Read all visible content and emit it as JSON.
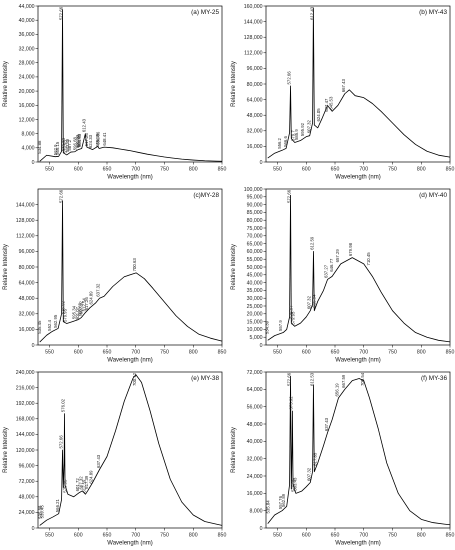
{
  "chart_data": [
    {
      "type": "line",
      "title": "(a) MY-25",
      "xlabel": "Wavelength (nm)",
      "ylabel": "Relative Intensity",
      "xlim": [
        530,
        850
      ],
      "ylim": [
        0,
        44000
      ],
      "xticks": [
        "550",
        "600",
        "650",
        "700",
        "750",
        "800",
        "850"
      ],
      "yticks": [
        "0",
        "4,000",
        "8,000",
        "12,000",
        "16,000",
        "20,000",
        "24,000",
        "28,000",
        "32,000",
        "36,000",
        "40,000",
        "44,000"
      ],
      "grid": false,
      "x": [
        533,
        545,
        560,
        566,
        571,
        572.66,
        574,
        580,
        587,
        594,
        600,
        606,
        612.4,
        615,
        625,
        634,
        636.4,
        645,
        660,
        675,
        690,
        705,
        720,
        735,
        750,
        765,
        780,
        800,
        820,
        840,
        850
      ],
      "y": [
        200,
        1900,
        1500,
        1600,
        3000,
        43000,
        2600,
        2000,
        2800,
        2900,
        3500,
        3800,
        8000,
        4200,
        3500,
        4400,
        3800,
        4200,
        4000,
        3600,
        3200,
        2700,
        2200,
        1800,
        1400,
        1100,
        800,
        550,
        350,
        250,
        200
      ],
      "peaks": [
        {
          "x": 534.88,
          "y": 1900,
          "label": "534.88"
        },
        {
          "x": 562.9,
          "y": 1500,
          "label": "562.9"
        },
        {
          "x": 566.15,
          "y": 1600,
          "label": "566.15"
        },
        {
          "x": 572.66,
          "y": 43000,
          "label": "572.66"
        },
        {
          "x": 576.63,
          "y": 2600,
          "label": "576.63"
        },
        {
          "x": 579.93,
          "y": 2000,
          "label": "579.93"
        },
        {
          "x": 583.89,
          "y": 2400,
          "label": "583.89"
        },
        {
          "x": 587.2,
          "y": 2800,
          "label": "587.2"
        },
        {
          "x": 596.68,
          "y": 2900,
          "label": "596.68"
        },
        {
          "x": 601.03,
          "y": 3500,
          "label": "601.03"
        },
        {
          "x": 603.06,
          "y": 3700,
          "label": "603.06"
        },
        {
          "x": 604.63,
          "y": 3800,
          "label": "604.63"
        },
        {
          "x": 612.43,
          "y": 8000,
          "label": "612.43"
        },
        {
          "x": 617.26,
          "y": 4000,
          "label": "617.26"
        },
        {
          "x": 624.33,
          "y": 3500,
          "label": "624.33"
        },
        {
          "x": 636.39,
          "y": 3800,
          "label": "636.39"
        },
        {
          "x": 636.86,
          "y": 4400,
          "label": "636.86"
        },
        {
          "x": 648.41,
          "y": 4200,
          "label": "648.41"
        }
      ]
    },
    {
      "type": "line",
      "title": "(b) MY-43",
      "xlabel": "Wavelength (nm)",
      "ylabel": "Relative Intensity",
      "xlim": [
        530,
        850
      ],
      "ylim": [
        0,
        160000
      ],
      "xticks": [
        "550",
        "600",
        "650",
        "700",
        "750",
        "800",
        "850"
      ],
      "yticks": [
        "0",
        "16,000",
        "32,000",
        "48,000",
        "64,000",
        "80,000",
        "96,000",
        "112,000",
        "128,000",
        "144,000",
        "160,000"
      ],
      "grid": false,
      "x": [
        533,
        545,
        558,
        565,
        571,
        572.66,
        574,
        580,
        590,
        600,
        606,
        611,
        612.43,
        614,
        620,
        627,
        637,
        645,
        655,
        667,
        675,
        685,
        700,
        715,
        730,
        750,
        770,
        790,
        810,
        830,
        850
      ],
      "y": [
        4000,
        9000,
        12000,
        14000,
        30000,
        78000,
        24000,
        20000,
        22000,
        26000,
        27000,
        40000,
        158000,
        38000,
        35000,
        44000,
        58000,
        52000,
        58000,
        70000,
        74000,
        68000,
        66000,
        60000,
        52000,
        40000,
        28000,
        18000,
        11000,
        7000,
        5000
      ],
      "peaks": [
        {
          "x": 556.2,
          "y": 12000,
          "label": "556.2"
        },
        {
          "x": 566.6,
          "y": 14000,
          "label": "566.6"
        },
        {
          "x": 572.66,
          "y": 78000,
          "label": "572.66"
        },
        {
          "x": 579.7,
          "y": 20000,
          "label": "579.7"
        },
        {
          "x": 585.9,
          "y": 21000,
          "label": "585.9"
        },
        {
          "x": 595.92,
          "y": 25000,
          "label": "595.92"
        },
        {
          "x": 607.32,
          "y": 28000,
          "label": "607.32"
        },
        {
          "x": 612.43,
          "y": 158000,
          "label": "612.43"
        },
        {
          "x": 624.05,
          "y": 40000,
          "label": "624.05"
        },
        {
          "x": 637.47,
          "y": 50000,
          "label": "637.47"
        },
        {
          "x": 645.53,
          "y": 52000,
          "label": "645.53"
        },
        {
          "x": 667.43,
          "y": 70000,
          "label": "667.43"
        }
      ]
    },
    {
      "type": "line",
      "title": "(c)MY-28",
      "xlabel": "Wavelength (nm)",
      "ylabel": "Relative Intensity",
      "xlim": [
        530,
        850
      ],
      "ylim": [
        0,
        160000
      ],
      "xticks": [
        "550",
        "600",
        "650",
        "700",
        "750",
        "800",
        "850"
      ],
      "yticks": [
        "0",
        "16,000",
        "32,000",
        "48,000",
        "64,000",
        "80,000",
        "96,000",
        "112,000",
        "128,000",
        "144,000"
      ],
      "grid": false,
      "x": [
        533,
        545,
        555,
        565,
        571,
        572.66,
        574,
        580,
        590,
        600,
        605,
        612,
        620,
        630,
        637,
        645,
        660,
        680,
        700.63,
        715,
        730,
        750,
        770,
        790,
        810,
        830,
        850
      ],
      "y": [
        3000,
        10000,
        14000,
        17000,
        32000,
        148000,
        24000,
        22000,
        24000,
        26000,
        28000,
        33000,
        38000,
        43000,
        48000,
        50000,
        60000,
        70000,
        74000,
        68000,
        58000,
        44000,
        30000,
        19000,
        11000,
        7000,
        4000
      ],
      "peaks": [
        {
          "x": 535.45,
          "y": 10000,
          "label": "535.45"
        },
        {
          "x": 552.4,
          "y": 13000,
          "label": "552.4"
        },
        {
          "x": 562.95,
          "y": 16000,
          "label": "562.95"
        },
        {
          "x": 572.66,
          "y": 148000,
          "label": "572.66"
        },
        {
          "x": 575.92,
          "y": 30000,
          "label": "575.92"
        },
        {
          "x": 579.95,
          "y": 22000,
          "label": "579.95"
        },
        {
          "x": 595.34,
          "y": 25000,
          "label": "595.34"
        },
        {
          "x": 601.07,
          "y": 24000,
          "label": "601.07"
        },
        {
          "x": 605.63,
          "y": 28000,
          "label": "605.63"
        },
        {
          "x": 607.32,
          "y": 30000,
          "label": "607.32"
        },
        {
          "x": 612.54,
          "y": 33000,
          "label": "612.54"
        },
        {
          "x": 617.26,
          "y": 34000,
          "label": "617.26"
        },
        {
          "x": 624.89,
          "y": 40000,
          "label": "624.89"
        },
        {
          "x": 637.32,
          "y": 48000,
          "label": "637.32"
        },
        {
          "x": 700.63,
          "y": 74000,
          "label": "700.63"
        }
      ]
    },
    {
      "type": "line",
      "title": "(d) MY-40",
      "xlabel": "Wavelength (nm)",
      "ylabel": "Relative Intensity",
      "xlim": [
        530,
        850
      ],
      "ylim": [
        0,
        100000
      ],
      "xticks": [
        "550",
        "600",
        "650",
        "700",
        "750",
        "800",
        "850"
      ],
      "yticks": [
        "0",
        "5,000",
        "10,000",
        "15,000",
        "20,000",
        "25,000",
        "30,000",
        "35,000",
        "40,000",
        "45,000",
        "50,000",
        "55,000",
        "60,000",
        "65,000",
        "70,000",
        "75,000",
        "80,000",
        "85,000",
        "90,000",
        "95,000",
        "100,000"
      ],
      "grid": false,
      "x": [
        533,
        545,
        560,
        566,
        571,
        572.66,
        574,
        580,
        590,
        600,
        607,
        611,
        612.59,
        614,
        620,
        630,
        637,
        645,
        660,
        670,
        680,
        700,
        715,
        730,
        750,
        770,
        790,
        810,
        830,
        850
      ],
      "y": [
        3000,
        6000,
        8000,
        10000,
        18000,
        96000,
        14000,
        12000,
        14000,
        18000,
        22000,
        26000,
        60000,
        22000,
        28000,
        35000,
        42000,
        44000,
        52000,
        54000,
        56000,
        52000,
        44000,
        34000,
        22000,
        14000,
        8000,
        5000,
        3000,
        2000
      ],
      "peaks": [
        {
          "x": 534.39,
          "y": 6000,
          "label": "534.39"
        },
        {
          "x": 557.9,
          "y": 8000,
          "label": "557.9"
        },
        {
          "x": 572.66,
          "y": 96000,
          "label": "572.66"
        },
        {
          "x": 575.97,
          "y": 16000,
          "label": "575.97"
        },
        {
          "x": 579.95,
          "y": 12000,
          "label": "579.95"
        },
        {
          "x": 607.32,
          "y": 22000,
          "label": "607.32"
        },
        {
          "x": 612.59,
          "y": 60000,
          "label": "612.59"
        },
        {
          "x": 615.94,
          "y": 23000,
          "label": "615.94"
        },
        {
          "x": 637.27,
          "y": 42000,
          "label": "637.27"
        },
        {
          "x": 646.77,
          "y": 46000,
          "label": "646.77"
        },
        {
          "x": 657.29,
          "y": 52000,
          "label": "657.29"
        },
        {
          "x": 679.98,
          "y": 56000,
          "label": "679.98"
        },
        {
          "x": 710.45,
          "y": 50000,
          "label": "710.45"
        }
      ]
    },
    {
      "type": "line",
      "title": "(e) MY-38",
      "xlabel": "Wavelength (nm)",
      "ylabel": "Relative Intensity",
      "xlim": [
        530,
        850
      ],
      "ylim": [
        0,
        240000
      ],
      "xticks": [
        "550",
        "600",
        "650",
        "700",
        "750",
        "800",
        "850"
      ],
      "yticks": [
        "0",
        "24,000",
        "48,000",
        "72,000",
        "96,000",
        "120,000",
        "144,000",
        "168,000",
        "192,000",
        "216,000",
        "240,000"
      ],
      "grid": false,
      "x": [
        533,
        545,
        556,
        566,
        571,
        572.66,
        574,
        575.5,
        576.02,
        577,
        582,
        592,
        601,
        607,
        612.59,
        617,
        625,
        637,
        650,
        665,
        680,
        695,
        700.12,
        710,
        725,
        740,
        760,
        780,
        800,
        820,
        840,
        850
      ],
      "y": [
        4000,
        12000,
        17000,
        22000,
        44000,
        120000,
        62000,
        100000,
        176000,
        66000,
        52000,
        48000,
        54000,
        57000,
        52000,
        58000,
        70000,
        90000,
        110000,
        150000,
        195000,
        230000,
        236000,
        224000,
        180000,
        130000,
        75000,
        40000,
        20000,
        10000,
        6000,
        4000
      ],
      "peaks": [
        {
          "x": 535.88,
          "y": 12000,
          "label": "535.88"
        },
        {
          "x": 539.45,
          "y": 12500,
          "label": "539.45"
        },
        {
          "x": 566.21,
          "y": 22000,
          "label": "566.21"
        },
        {
          "x": 572.66,
          "y": 120000,
          "label": "572.66"
        },
        {
          "x": 576.02,
          "y": 176000,
          "label": "576.02"
        },
        {
          "x": 579.95,
          "y": 52000,
          "label": "579.95"
        },
        {
          "x": 601.72,
          "y": 54000,
          "label": "601.72"
        },
        {
          "x": 607.32,
          "y": 57000,
          "label": "607.32"
        },
        {
          "x": 612.59,
          "y": 52000,
          "label": "612.59"
        },
        {
          "x": 617.39,
          "y": 58000,
          "label": "617.39"
        },
        {
          "x": 624.89,
          "y": 66000,
          "label": "624.89"
        },
        {
          "x": 637.43,
          "y": 90000,
          "label": "637.43"
        },
        {
          "x": 700.12,
          "y": 236000,
          "label": "700.12"
        }
      ]
    },
    {
      "type": "line",
      "title": "(f) MY-36",
      "xlabel": "Wavelength (nm)",
      "ylabel": "Relative Intensity",
      "xlim": [
        530,
        850
      ],
      "ylim": [
        0,
        72000
      ],
      "xticks": [
        "550",
        "600",
        "650",
        "700",
        "750",
        "800",
        "850"
      ],
      "yticks": [
        "0",
        "8,000",
        "16,000",
        "24,000",
        "32,000",
        "40,000",
        "48,000",
        "56,000",
        "64,000",
        "72,000"
      ],
      "grid": false,
      "x": [
        533,
        545,
        558,
        566,
        571,
        572.66,
        574,
        575.5,
        575.92,
        577,
        582,
        592,
        600,
        607,
        611,
        612.53,
        614,
        620,
        630,
        637,
        645,
        656,
        667,
        680,
        692,
        700,
        710,
        725,
        740,
        760,
        780,
        800,
        820,
        840,
        850
      ],
      "y": [
        2000,
        6000,
        8000,
        10000,
        20000,
        70000,
        18000,
        40000,
        54000,
        20000,
        16000,
        17000,
        19000,
        21000,
        26000,
        66000,
        26000,
        30000,
        38000,
        44000,
        50000,
        60000,
        64000,
        68000,
        69000,
        68000,
        60000,
        46000,
        30000,
        16000,
        8000,
        4000,
        2500,
        1800,
        1500
      ],
      "peaks": [
        {
          "x": 535.84,
          "y": 6000,
          "label": "535.84"
        },
        {
          "x": 557.76,
          "y": 8000,
          "label": "557.76"
        },
        {
          "x": 562.89,
          "y": 9000,
          "label": "562.89"
        },
        {
          "x": 572.66,
          "y": 70000,
          "label": "572.66"
        },
        {
          "x": 575.92,
          "y": 54000,
          "label": "575.92"
        },
        {
          "x": 579.95,
          "y": 16000,
          "label": "579.95"
        },
        {
          "x": 583.43,
          "y": 16500,
          "label": "583.43"
        },
        {
          "x": 607.32,
          "y": 21000,
          "label": "607.32"
        },
        {
          "x": 612.53,
          "y": 66000,
          "label": "612.53"
        },
        {
          "x": 617.85,
          "y": 28000,
          "label": "617.85"
        },
        {
          "x": 637.43,
          "y": 44000,
          "label": "637.43"
        },
        {
          "x": 656.19,
          "y": 60000,
          "label": "656.19"
        },
        {
          "x": 667.59,
          "y": 64000,
          "label": "667.59"
        },
        {
          "x": 700.54,
          "y": 68000,
          "label": "700.54"
        }
      ]
    }
  ]
}
